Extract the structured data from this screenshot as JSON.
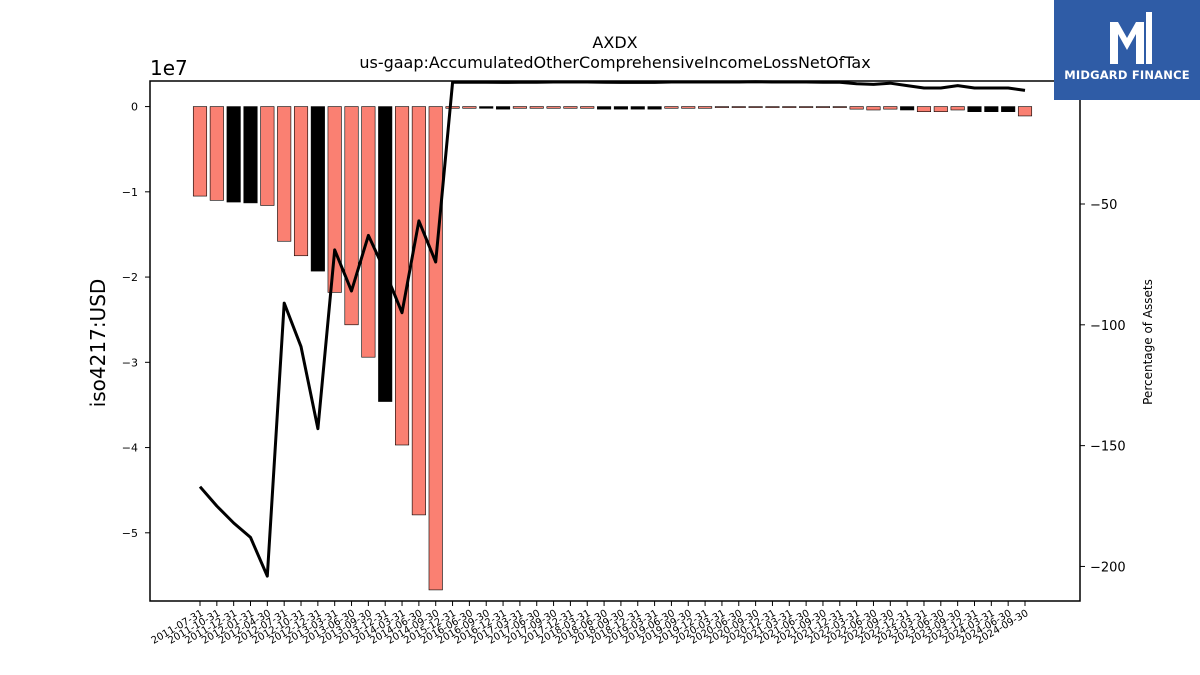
{
  "logo": {
    "text": "MIDGARD FINANCE",
    "icon": "midgard-logo-icon",
    "background": "#2f5ca6"
  },
  "chart_data": {
    "type": "bar",
    "title": "AXDX",
    "subtitle": "us-gaap:AccumulatedOtherComprehensiveIncomeLossNetOfTax",
    "ylabel": "iso4217:USD",
    "y_offset_text": "1e7",
    "y2label": "Percentage of Assets",
    "ylim": [
      -58000000.0,
      3000000.0
    ],
    "y2lim": [
      -214.3,
      0.9
    ],
    "yticks": [
      0,
      -10000000.0,
      -20000000.0,
      -30000000.0,
      -40000000.0,
      -50000000.0
    ],
    "ytick_labels": [
      "0",
      "−1",
      "−2",
      "−3",
      "−4",
      "−5"
    ],
    "y2ticks": [
      0,
      -50,
      -100,
      -150,
      -200
    ],
    "y2tick_labels": [
      "0",
      "−50",
      "−100",
      "−150",
      "−200"
    ],
    "grid": false,
    "legend": "none",
    "colors": {
      "positive_change": "#fa8072",
      "negative_change": "#000000",
      "edge": "#000000",
      "line": "#000000"
    },
    "categories": [
      "2011-07-31",
      "2011-10-31",
      "2011-12-31",
      "2012-01-31",
      "2012-04-30",
      "2012-07-31",
      "2012-10-31",
      "2012-12-31",
      "2013-03-31",
      "2013-06-30",
      "2013-09-30",
      "2013-12-31",
      "2014-03-31",
      "2014-06-30",
      "2014-09-30",
      "2015-12-31",
      "2016-06-30",
      "2016-09-30",
      "2016-12-31",
      "2017-03-31",
      "2017-06-30",
      "2017-09-30",
      "2017-12-31",
      "2018-03-31",
      "2018-06-30",
      "2018-09-30",
      "2018-12-31",
      "2019-03-31",
      "2019-06-30",
      "2019-09-30",
      "2019-12-31",
      "2020-03-31",
      "2020-06-30",
      "2020-09-30",
      "2020-12-31",
      "2021-03-31",
      "2021-06-30",
      "2021-09-30",
      "2021-12-31",
      "2022-03-31",
      "2022-06-30",
      "2022-09-30",
      "2022-12-31",
      "2023-03-31",
      "2023-06-30",
      "2023-09-30",
      "2023-12-31",
      "2024-03-31",
      "2024-06-30",
      "2024-09-30"
    ],
    "tick_labels": [
      "2011-07-31",
      "2011-10-31",
      "2011-12-31",
      "2012-01-31",
      "2012-04-30",
      "2012-07-31",
      "2012-10-31",
      "2012-12-31",
      "2013-03-31",
      "2013-06-30",
      "2013-09-30",
      "2013-12-31",
      "2014-03-31",
      "2014-06-30",
      "2014-09-30",
      "2015-12-31",
      "2016-06-30",
      "2016-09-30",
      "2016-12-31",
      "2017-03-31",
      "2017-06-30",
      "2017-09-30",
      "2017-12-31",
      "2018-03-31",
      "2018-06-30",
      "2018-09-30",
      "2018-12-31",
      "2019-03-31",
      "2019-06-30",
      "2019-09-30",
      "2019-12-31",
      "2020-03-31",
      "2020-06-30",
      "2020-09-30",
      "2020-12-31",
      "2021-03-31",
      "2021-06-30",
      "2021-09-30",
      "2021-12-31",
      "2022-03-31",
      "2022-06-30",
      "2022-09-30",
      "2022-12-31",
      "2023-03-31",
      "2023-06-30",
      "2023-09-30",
      "2023-12-31",
      "2024-03-31",
      "2024-06-30",
      "2024-09-30"
    ],
    "values": [
      -10500000,
      -11000000,
      -11200000,
      -11300000,
      -11600000,
      -15800000,
      -17500000,
      -19300000,
      -21800000,
      -25600000,
      -29400000,
      -34600000,
      -39700000,
      -47900000,
      -56700000,
      -200000,
      -200000,
      -200000,
      -300000,
      -200000,
      -200000,
      -200000,
      -200000,
      -200000,
      -300000,
      -300000,
      -300000,
      -300000,
      -200000,
      -200000,
      -200000,
      -100000,
      -100000,
      -100000,
      -100000,
      -100000,
      -100000,
      -100000,
      -100000,
      -300000,
      -400000,
      -300000,
      -400000,
      -600000,
      -600000,
      -400000,
      -600000,
      -600000,
      -600000,
      -1100000
    ],
    "bar_colors": [
      "salmon",
      "salmon",
      "black",
      "black",
      "salmon",
      "salmon",
      "salmon",
      "black",
      "salmon",
      "salmon",
      "salmon",
      "black",
      "salmon",
      "salmon",
      "salmon",
      "salmon",
      "salmon",
      "black",
      "black",
      "salmon",
      "salmon",
      "salmon",
      "salmon",
      "salmon",
      "black",
      "black",
      "black",
      "black",
      "salmon",
      "salmon",
      "salmon",
      "salmon",
      "salmon",
      "salmon",
      "salmon",
      "salmon",
      "salmon",
      "salmon",
      "salmon",
      "salmon",
      "salmon",
      "salmon",
      "black",
      "salmon",
      "salmon",
      "salmon",
      "black",
      "black",
      "black",
      "salmon"
    ],
    "series": [
      {
        "name": "Percentage of Assets",
        "axis": "right",
        "values": [
          -167,
          -175,
          -182,
          -188,
          -204,
          -91,
          -109,
          -143,
          -69,
          -86,
          -63,
          -78,
          -95,
          -57,
          -74,
          0.4,
          0.4,
          0.4,
          0.3,
          0.4,
          0.4,
          0.5,
          0.5,
          0.5,
          0.4,
          0.3,
          0.3,
          0.3,
          0.5,
          0.5,
          0.5,
          0.5,
          0.5,
          0.6,
          0.5,
          0.5,
          0.5,
          0.4,
          0.4,
          -0.2,
          -0.5,
          0,
          -1,
          -2,
          -2,
          -1,
          -2,
          -2,
          -2,
          -3
        ]
      }
    ]
  }
}
